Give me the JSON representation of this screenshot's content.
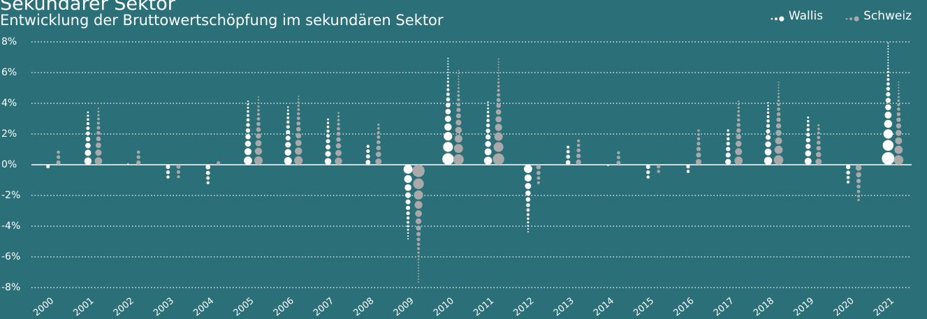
{
  "chart_data": {
    "type": "dot-column",
    "title": "Sekundärer Sektor",
    "subtitle": "Entwicklung der Bruttowertschöpfung im sekundären Sektor",
    "categories": [
      "2000",
      "2001",
      "2002",
      "2003",
      "2004",
      "2005",
      "2006",
      "2007",
      "2008",
      "2009",
      "2010",
      "2011",
      "2012",
      "2013",
      "2014",
      "2015",
      "2016",
      "2017",
      "2018",
      "2019",
      "2020",
      "2021"
    ],
    "series": [
      {
        "name": "Wallis",
        "color": "#ffffff",
        "values": [
          -0.4,
          3.6,
          0.1,
          -1.0,
          -1.4,
          4.3,
          3.9,
          3.0,
          1.5,
          -5.0,
          7.1,
          4.2,
          -4.4,
          1.3,
          -0.1,
          -1.0,
          -0.5,
          2.3,
          4.1,
          3.3,
          -1.2,
          8.0
        ]
      },
      {
        "name": "Schweiz",
        "color": "#a9a9a9",
        "values": [
          1.1,
          3.7,
          1.1,
          -0.9,
          0.3,
          4.5,
          4.6,
          3.5,
          2.7,
          -7.8,
          6.2,
          7.0,
          -1.4,
          1.8,
          0.9,
          -0.5,
          2.3,
          4.3,
          5.4,
          2.6,
          -2.5,
          5.4
        ]
      }
    ],
    "ylim": [
      -8,
      8
    ],
    "yticks": [
      {
        "value": -8,
        "label": "-8%"
      },
      {
        "value": -6,
        "label": "-6%"
      },
      {
        "value": -4,
        "label": "-4%"
      },
      {
        "value": -2,
        "label": "-2%"
      },
      {
        "value": 0,
        "label": "0%"
      },
      {
        "value": 2,
        "label": "2%"
      },
      {
        "value": 4,
        "label": "4%"
      },
      {
        "value": 6,
        "label": "6%"
      },
      {
        "value": 8,
        "label": "8%"
      }
    ],
    "grid": true,
    "legend": "top-right"
  }
}
